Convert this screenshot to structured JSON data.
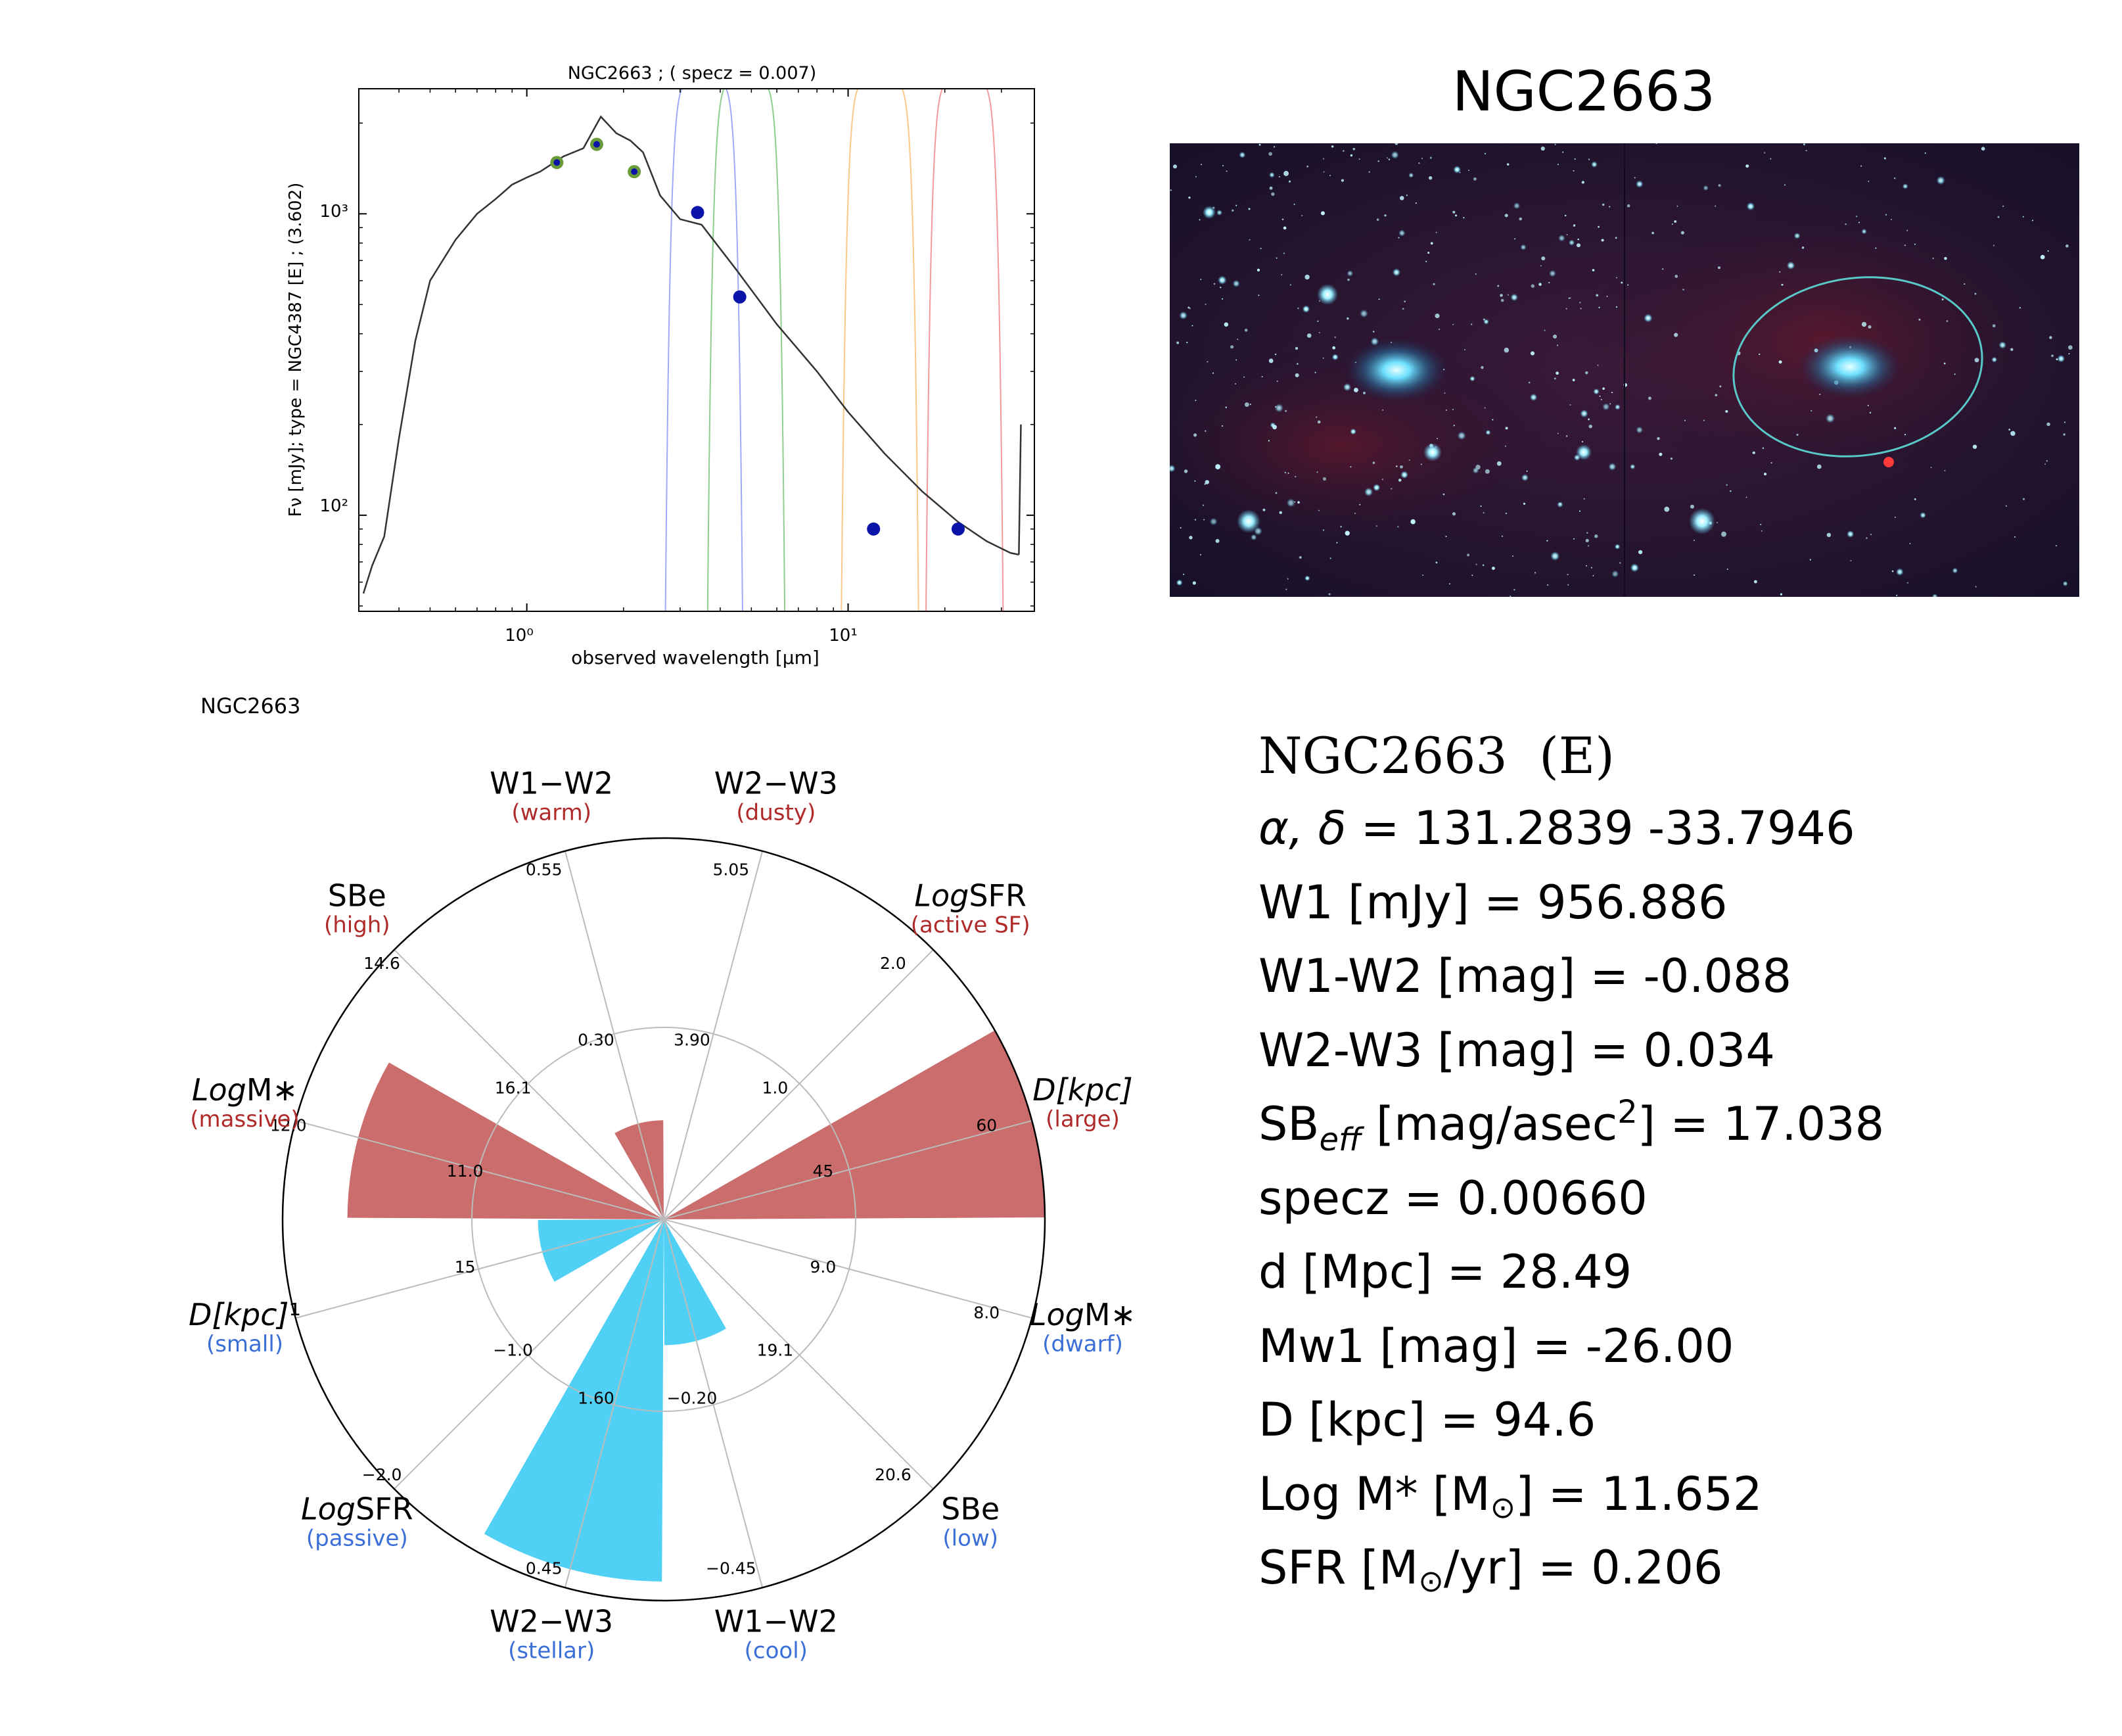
{
  "sed": {
    "title": "NGC2663 ; ( specz = 0.007)",
    "xlabel": "observed wavelength [μm]",
    "ylabel": "Fν [mJy];  type = NGC4387 [E] ; (3.602)",
    "xticks": [
      "10⁰",
      "10¹"
    ],
    "yticks": [
      "10³",
      "10²"
    ]
  },
  "image": {
    "title": "NGC2663"
  },
  "radar": {
    "title": "NGC2663",
    "axes": [
      {
        "label": "W1−W2",
        "sublabel": "(warm)",
        "ticks": [
          "0.55",
          "0.30"
        ]
      },
      {
        "label": "W2−W3",
        "sublabel": "(dusty)",
        "ticks": [
          "5.05",
          "3.90"
        ]
      },
      {
        "label_italic": "Log",
        "label": "SFR",
        "sublabel": "(active SF)",
        "ticks": [
          "2.0",
          "1.0"
        ]
      },
      {
        "label_italic": "D[kpc]",
        "label": "",
        "sublabel": "(large)",
        "ticks": [
          "60",
          "45"
        ]
      },
      {
        "label_italic": "Log",
        "label": "M∗",
        "sublabel": "(dwarf)",
        "ticks": [
          "8.0",
          "9.0"
        ]
      },
      {
        "label": "SBe",
        "sublabel": "(low)",
        "ticks": [
          "20.6",
          "19.1"
        ]
      },
      {
        "label": "W1−W2",
        "sublabel": "(cool)",
        "ticks": [
          "−0.45",
          "−0.20"
        ]
      },
      {
        "label": "W2−W3",
        "sublabel": "(stellar)",
        "ticks": [
          "0.45",
          "1.60"
        ]
      },
      {
        "label_italic": "Log",
        "label": "SFR",
        "sublabel": "(passive)",
        "ticks": [
          "−2.0",
          "−1.0"
        ]
      },
      {
        "label_italic": "D[kpc]",
        "label": "¹",
        "sublabel": "(small)",
        "ticks": [
          "",
          "15"
        ]
      },
      {
        "label_italic": "Log",
        "label": "M∗",
        "sublabel": "(massive)",
        "ticks": [
          "12.0",
          "11.0"
        ]
      },
      {
        "label": "SBe",
        "sublabel": "(high)",
        "ticks": [
          "14.6",
          "16.1"
        ]
      }
    ]
  },
  "info": {
    "title": "NGC2663  (E)",
    "radec_label": "α, δ",
    "radec_value": " = 131.2839 -33.7946",
    "w1": "W1 [mJy] = 956.886",
    "w1w2": "W1-W2 [mag] = -0.088",
    "w2w3": "W2-W3 [mag] = 0.034",
    "sb_prefix": "SB",
    "sb_sub": "eff",
    "sb_mid": " [mag/asec",
    "sb_sup": "2",
    "sb_value": "] = 17.038",
    "specz": "specz = 0.00660",
    "dist": "d [Mpc] = 28.49",
    "mw1": "Mw1 [mag] = -26.00",
    "dkpc": "D [kpc] = 94.6",
    "logm_prefix": "Log M* [M",
    "logm_value": "] = 11.652",
    "sfr_prefix": "SFR [M",
    "sfr_value": "/yr] = 0.206",
    "odot": "⊙"
  },
  "chart_data": [
    {
      "type": "scatter",
      "title": "NGC2663 ; ( specz = 0.007)",
      "xlabel": "observed wavelength [μm]",
      "ylabel": "Fν [mJy];  type = NGC4387 [E] ; (3.602)",
      "xscale": "log",
      "yscale": "log",
      "xlim": [
        0.3,
        38
      ],
      "ylim": [
        48,
        2600
      ],
      "series": [
        {
          "name": "",
          "x": [
            1.24,
            1.65,
            2.16
          ],
          "y": [
            1480,
            1700,
            1380
          ],
          "color": "#6a9b3a"
        },
        {
          "name": "",
          "x": [
            3.4,
            4.6,
            12.0,
            22.0
          ],
          "y": [
            1010,
            530,
            90,
            90
          ],
          "color": "#0a14a8"
        }
      ],
      "template": {
        "x": [
          0.31,
          0.33,
          0.36,
          0.4,
          0.45,
          0.5,
          0.6,
          0.7,
          0.8,
          0.9,
          1.0,
          1.1,
          1.3,
          1.5,
          1.7,
          1.9,
          2.1,
          2.3,
          2.6,
          3.0,
          3.5,
          4.5,
          6,
          8,
          10,
          13,
          17,
          22,
          27,
          32,
          34
        ],
        "y": [
          55,
          68,
          85,
          180,
          380,
          600,
          820,
          1000,
          1120,
          1250,
          1320,
          1380,
          1550,
          1650,
          2100,
          1850,
          1750,
          1600,
          1150,
          960,
          920,
          650,
          430,
          300,
          220,
          160,
          120,
          95,
          82,
          75,
          74
        ]
      },
      "filter_curves": [
        {
          "name": "W1",
          "center": 3.4,
          "color": "#9fa9f5"
        },
        {
          "name": "W2",
          "center": 4.6,
          "color": "#8fce8f"
        },
        {
          "name": "W3",
          "center": 12.0,
          "color": "#f9c98a"
        },
        {
          "name": "W4",
          "center": 22.0,
          "color": "#f39a9a"
        }
      ]
    },
    {
      "type": "radar",
      "title": "NGC2663",
      "categories": [
        "W1−W2 (warm)",
        "W2−W3 (dusty)",
        "LogSFR (active SF)",
        "D[kpc] (large)",
        "LogM∗ (dwarf)",
        "SBe (low)",
        "W1−W2 (cool)",
        "W2−W3 (stellar)",
        "LogSFR (passive)",
        "D[kpc] (small)",
        "LogM∗ (massive)",
        "SBe (high)"
      ],
      "values": [
        0.26,
        0,
        0,
        1.0,
        0,
        0,
        0.33,
        0.95,
        0,
        0.33,
        0.83,
        0
      ],
      "colors": [
        "#c96565",
        "#c96565",
        "#c96565",
        "#c96565",
        "#47cdf4",
        "#47cdf4",
        "#47cdf4",
        "#47cdf4",
        "#47cdf4",
        "#47cdf4",
        "#c96565",
        "#c96565"
      ],
      "rlim": [
        0,
        1
      ]
    }
  ]
}
